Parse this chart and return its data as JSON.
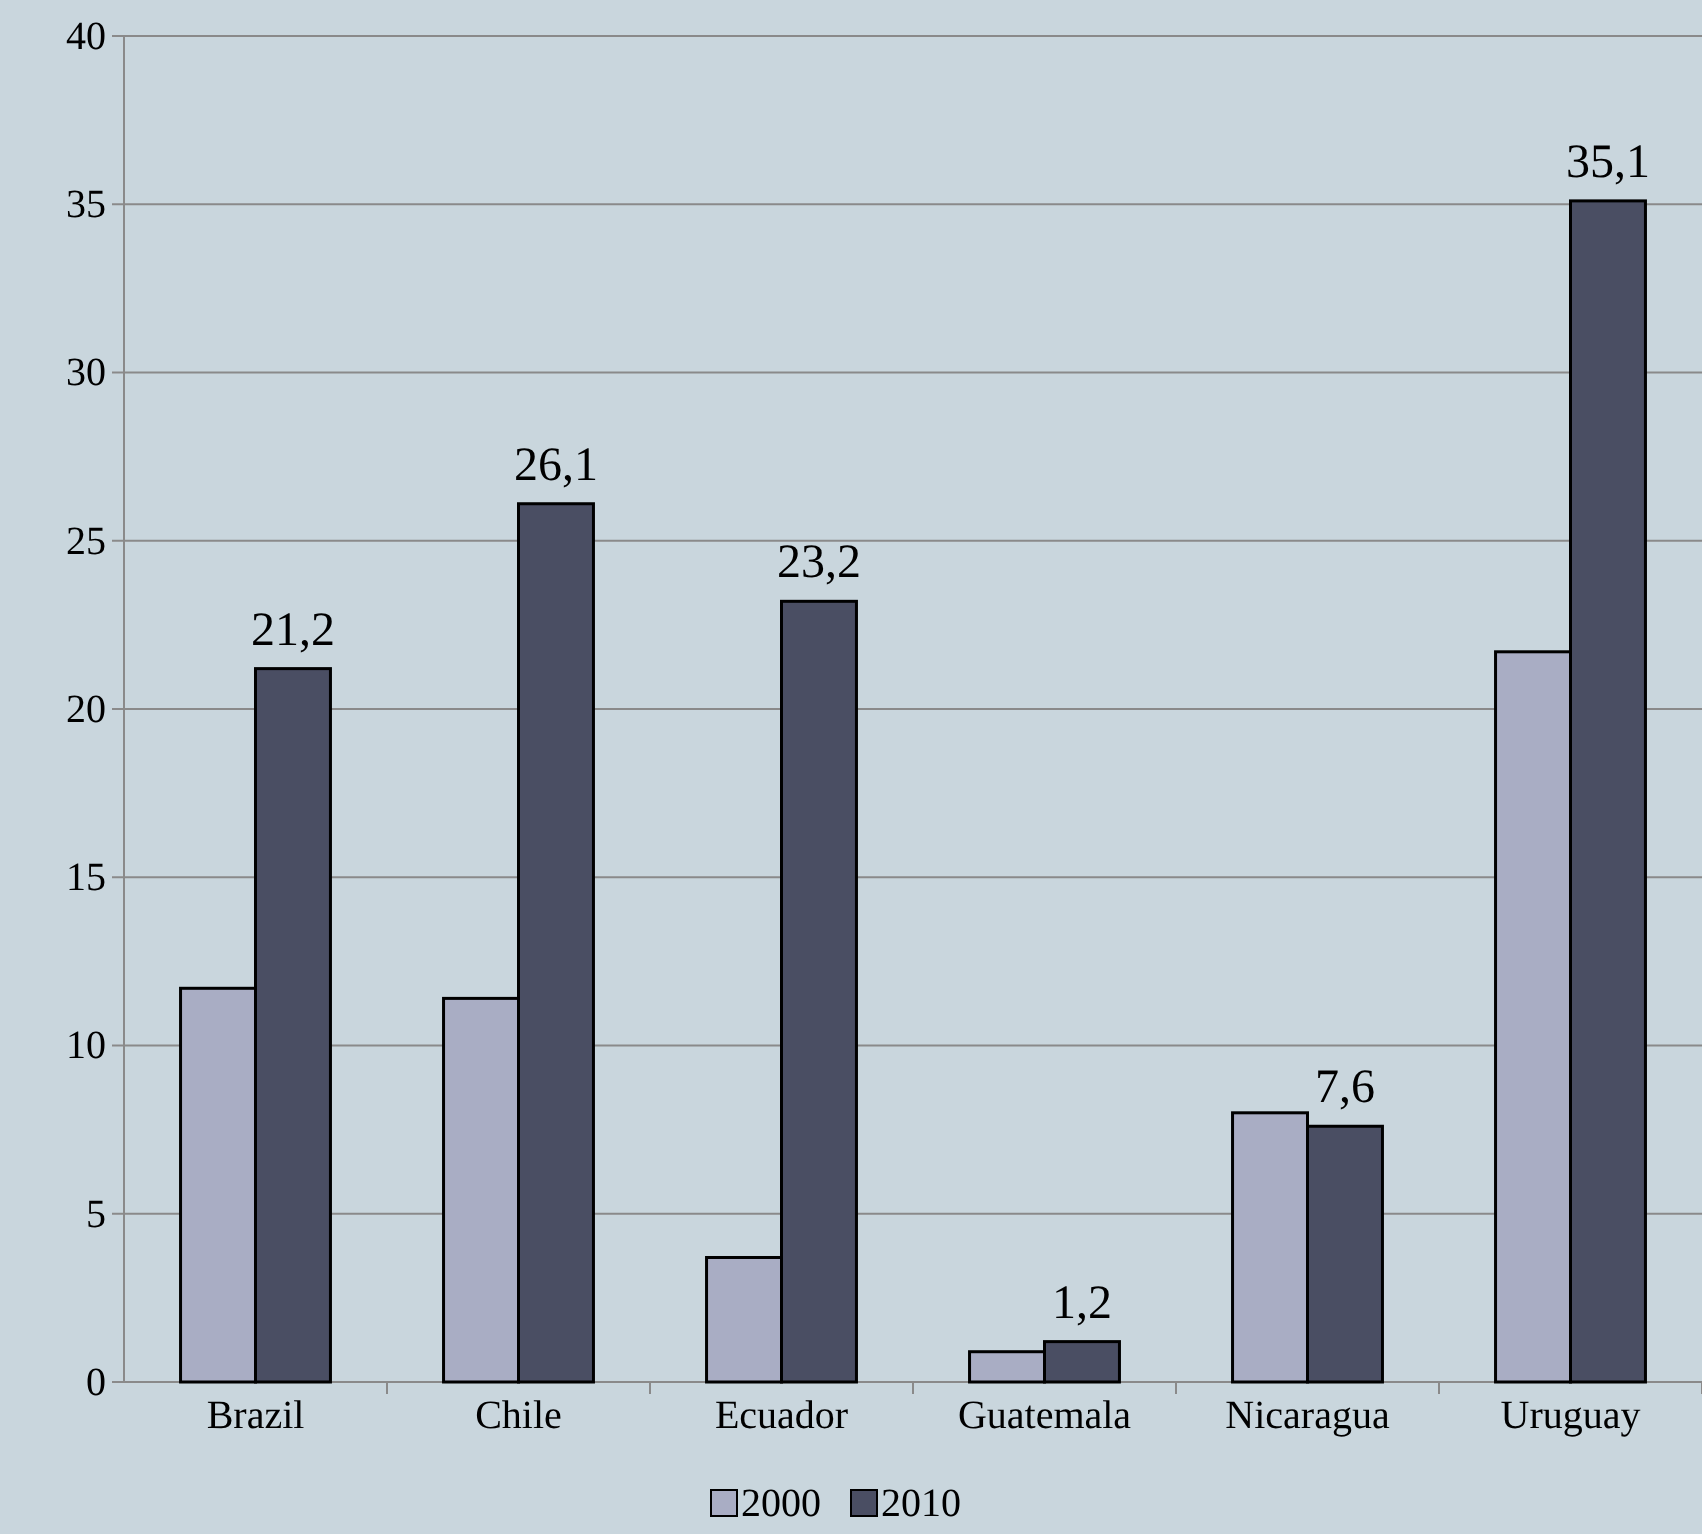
{
  "chart_data": {
    "type": "bar",
    "categories": [
      "Brazil",
      "Chile",
      "Ecuador",
      "Guatemala",
      "Nicaragua",
      "Uruguay"
    ],
    "series": [
      {
        "name": "2000",
        "color": "#a9adc4",
        "values": [
          11.7,
          11.4,
          3.7,
          0.9,
          8.0,
          21.7
        ]
      },
      {
        "name": "2010",
        "color": "#4a4e63",
        "values": [
          21.2,
          26.1,
          23.2,
          1.2,
          7.6,
          35.1
        ],
        "value_labels": [
          "21,2",
          "26,1",
          "23,2",
          "1,2",
          "7,6",
          "35,1"
        ]
      }
    ],
    "ylim": [
      0,
      40
    ],
    "yticks": [
      0,
      5,
      10,
      15,
      20,
      25,
      30,
      35,
      40
    ],
    "grid": "y",
    "legend": "bottom"
  }
}
